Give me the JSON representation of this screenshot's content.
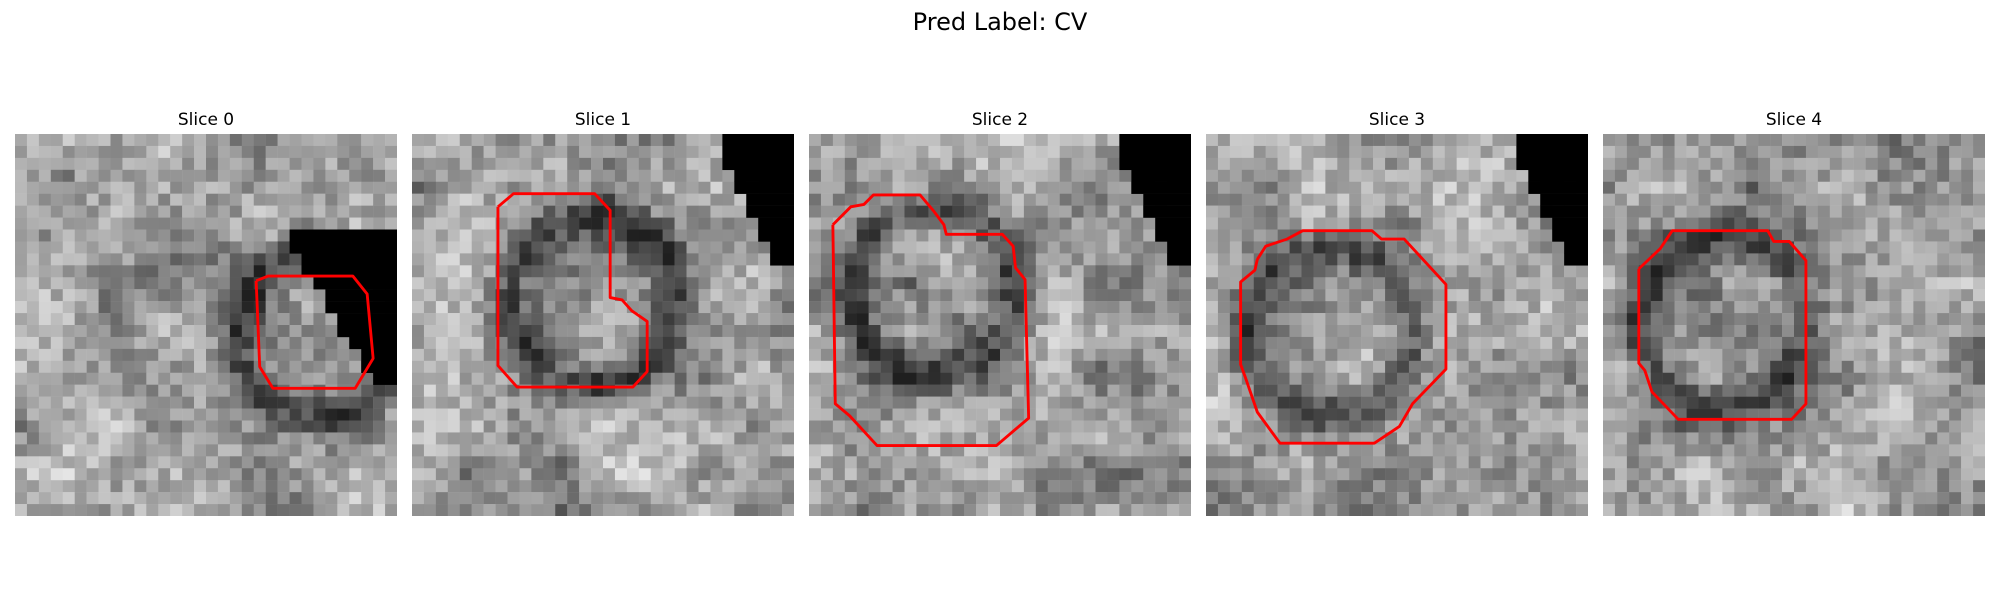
{
  "figure": {
    "suptitle": "Pred Label: CV"
  },
  "panels": [
    {
      "title": "Slice 0",
      "seed": 11,
      "mask": [
        [
          23,
          8
        ],
        [
          31,
          8
        ],
        [
          31,
          20
        ],
        [
          24,
          20
        ]
      ],
      "contour": [
        [
          20.2,
          12.3
        ],
        [
          21.2,
          11.9
        ],
        [
          28.3,
          11.9
        ],
        [
          29.5,
          13.4
        ],
        [
          30,
          18.8
        ],
        [
          28.5,
          21.3
        ],
        [
          21.6,
          21.3
        ],
        [
          20.5,
          19.5
        ]
      ]
    },
    {
      "title": "Slice 1",
      "seed": 23,
      "mask": [
        [
          26,
          0
        ],
        [
          31,
          0
        ],
        [
          31,
          10
        ],
        [
          26,
          10
        ]
      ],
      "contour": [
        [
          7.2,
          6.1
        ],
        [
          8.5,
          5.0
        ],
        [
          15.3,
          5.0
        ],
        [
          16.6,
          6.4
        ],
        [
          16.6,
          13.7
        ],
        [
          17.6,
          13.9
        ],
        [
          18.4,
          14.8
        ],
        [
          19.7,
          15.7
        ],
        [
          19.7,
          19.9
        ],
        [
          18.5,
          21.2
        ],
        [
          8.8,
          21.2
        ],
        [
          7.2,
          19.4
        ]
      ]
    },
    {
      "title": "Slice 2",
      "seed": 37,
      "mask": [
        [
          26,
          0
        ],
        [
          31,
          0
        ],
        [
          31,
          10
        ],
        [
          26,
          10
        ]
      ],
      "contour": [
        [
          2.0,
          7.6
        ],
        [
          3.5,
          6.1
        ],
        [
          4.6,
          5.9
        ],
        [
          5.4,
          5.1
        ],
        [
          9.3,
          5.1
        ],
        [
          10.4,
          6.4
        ],
        [
          11.3,
          7.6
        ],
        [
          11.5,
          8.4
        ],
        [
          16.2,
          8.4
        ],
        [
          17.1,
          9.4
        ],
        [
          17.3,
          11.2
        ],
        [
          18.1,
          12.2
        ],
        [
          18.4,
          23.8
        ],
        [
          15.7,
          26.1
        ],
        [
          5.7,
          26.1
        ],
        [
          3.4,
          23.6
        ],
        [
          2.2,
          22.6
        ]
      ]
    },
    {
      "title": "Slice 3",
      "seed": 53,
      "mask": [
        [
          26,
          0
        ],
        [
          31,
          0
        ],
        [
          31,
          10
        ],
        [
          26,
          10
        ]
      ],
      "contour": [
        [
          4.3,
          10.5
        ],
        [
          5.0,
          9.4
        ],
        [
          6.8,
          8.8
        ],
        [
          8.1,
          8.1
        ],
        [
          13.9,
          8.1
        ],
        [
          14.7,
          8.8
        ],
        [
          16.6,
          8.8
        ],
        [
          20.1,
          12.6
        ],
        [
          20.1,
          19.7
        ],
        [
          17.3,
          22.6
        ],
        [
          16.2,
          24.5
        ],
        [
          14.1,
          25.9
        ],
        [
          6.2,
          25.9
        ],
        [
          5.1,
          24.4
        ],
        [
          4.3,
          23.3
        ],
        [
          3.3,
          20.4
        ],
        [
          2.9,
          19.3
        ],
        [
          2.9,
          12.4
        ],
        [
          4.1,
          11.4
        ]
      ]
    },
    {
      "title": "Slice 4",
      "seed": 71,
      "mask": [],
      "contour": [
        [
          3.0,
          11.3
        ],
        [
          4.8,
          9.6
        ],
        [
          5.8,
          8.1
        ],
        [
          13.8,
          8.1
        ],
        [
          14.3,
          9.0
        ],
        [
          15.6,
          9.0
        ],
        [
          17.0,
          10.6
        ],
        [
          17.0,
          22.6
        ],
        [
          15.8,
          23.9
        ],
        [
          6.3,
          23.9
        ],
        [
          4.1,
          21.6
        ],
        [
          3.5,
          19.8
        ],
        [
          3.0,
          19.2
        ]
      ]
    }
  ]
}
